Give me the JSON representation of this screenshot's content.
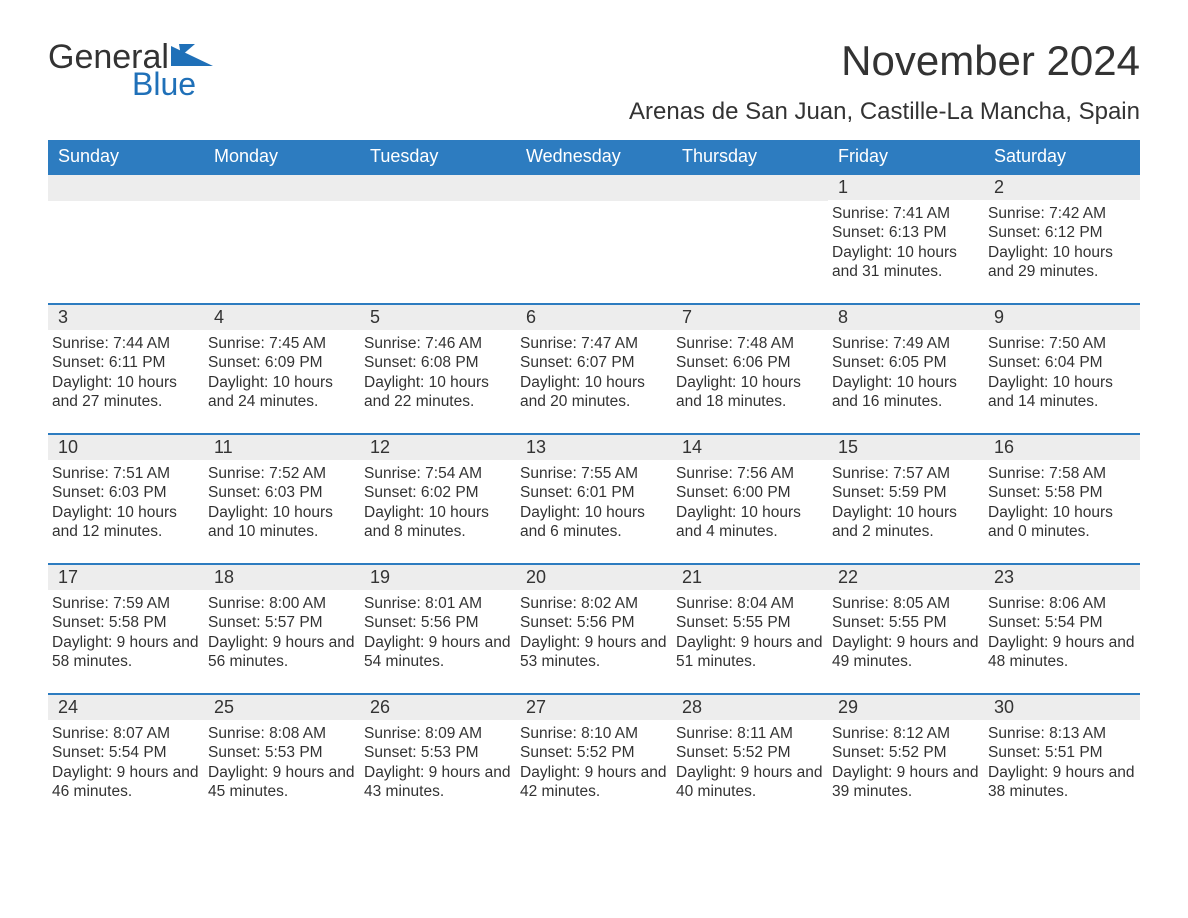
{
  "brand": {
    "word1": "General",
    "word2": "Blue",
    "flag_color": "#1f70b8"
  },
  "header": {
    "title": "November 2024",
    "location": "Arenas de San Juan, Castille-La Mancha, Spain"
  },
  "colors": {
    "header_bg": "#2d7cc0",
    "header_text": "#ffffff",
    "row_divider": "#2d7cc0",
    "daynum_bg": "#ededed",
    "text": "#333333",
    "background": "#ffffff"
  },
  "calendar": {
    "type": "calendar-table",
    "day_headers": [
      "Sunday",
      "Monday",
      "Tuesday",
      "Wednesday",
      "Thursday",
      "Friday",
      "Saturday"
    ],
    "weeks": [
      [
        null,
        null,
        null,
        null,
        null,
        {
          "n": "1",
          "sunrise": "Sunrise: 7:41 AM",
          "sunset": "Sunset: 6:13 PM",
          "daylight": "Daylight: 10 hours and 31 minutes."
        },
        {
          "n": "2",
          "sunrise": "Sunrise: 7:42 AM",
          "sunset": "Sunset: 6:12 PM",
          "daylight": "Daylight: 10 hours and 29 minutes."
        }
      ],
      [
        {
          "n": "3",
          "sunrise": "Sunrise: 7:44 AM",
          "sunset": "Sunset: 6:11 PM",
          "daylight": "Daylight: 10 hours and 27 minutes."
        },
        {
          "n": "4",
          "sunrise": "Sunrise: 7:45 AM",
          "sunset": "Sunset: 6:09 PM",
          "daylight": "Daylight: 10 hours and 24 minutes."
        },
        {
          "n": "5",
          "sunrise": "Sunrise: 7:46 AM",
          "sunset": "Sunset: 6:08 PM",
          "daylight": "Daylight: 10 hours and 22 minutes."
        },
        {
          "n": "6",
          "sunrise": "Sunrise: 7:47 AM",
          "sunset": "Sunset: 6:07 PM",
          "daylight": "Daylight: 10 hours and 20 minutes."
        },
        {
          "n": "7",
          "sunrise": "Sunrise: 7:48 AM",
          "sunset": "Sunset: 6:06 PM",
          "daylight": "Daylight: 10 hours and 18 minutes."
        },
        {
          "n": "8",
          "sunrise": "Sunrise: 7:49 AM",
          "sunset": "Sunset: 6:05 PM",
          "daylight": "Daylight: 10 hours and 16 minutes."
        },
        {
          "n": "9",
          "sunrise": "Sunrise: 7:50 AM",
          "sunset": "Sunset: 6:04 PM",
          "daylight": "Daylight: 10 hours and 14 minutes."
        }
      ],
      [
        {
          "n": "10",
          "sunrise": "Sunrise: 7:51 AM",
          "sunset": "Sunset: 6:03 PM",
          "daylight": "Daylight: 10 hours and 12 minutes."
        },
        {
          "n": "11",
          "sunrise": "Sunrise: 7:52 AM",
          "sunset": "Sunset: 6:03 PM",
          "daylight": "Daylight: 10 hours and 10 minutes."
        },
        {
          "n": "12",
          "sunrise": "Sunrise: 7:54 AM",
          "sunset": "Sunset: 6:02 PM",
          "daylight": "Daylight: 10 hours and 8 minutes."
        },
        {
          "n": "13",
          "sunrise": "Sunrise: 7:55 AM",
          "sunset": "Sunset: 6:01 PM",
          "daylight": "Daylight: 10 hours and 6 minutes."
        },
        {
          "n": "14",
          "sunrise": "Sunrise: 7:56 AM",
          "sunset": "Sunset: 6:00 PM",
          "daylight": "Daylight: 10 hours and 4 minutes."
        },
        {
          "n": "15",
          "sunrise": "Sunrise: 7:57 AM",
          "sunset": "Sunset: 5:59 PM",
          "daylight": "Daylight: 10 hours and 2 minutes."
        },
        {
          "n": "16",
          "sunrise": "Sunrise: 7:58 AM",
          "sunset": "Sunset: 5:58 PM",
          "daylight": "Daylight: 10 hours and 0 minutes."
        }
      ],
      [
        {
          "n": "17",
          "sunrise": "Sunrise: 7:59 AM",
          "sunset": "Sunset: 5:58 PM",
          "daylight": "Daylight: 9 hours and 58 minutes."
        },
        {
          "n": "18",
          "sunrise": "Sunrise: 8:00 AM",
          "sunset": "Sunset: 5:57 PM",
          "daylight": "Daylight: 9 hours and 56 minutes."
        },
        {
          "n": "19",
          "sunrise": "Sunrise: 8:01 AM",
          "sunset": "Sunset: 5:56 PM",
          "daylight": "Daylight: 9 hours and 54 minutes."
        },
        {
          "n": "20",
          "sunrise": "Sunrise: 8:02 AM",
          "sunset": "Sunset: 5:56 PM",
          "daylight": "Daylight: 9 hours and 53 minutes."
        },
        {
          "n": "21",
          "sunrise": "Sunrise: 8:04 AM",
          "sunset": "Sunset: 5:55 PM",
          "daylight": "Daylight: 9 hours and 51 minutes."
        },
        {
          "n": "22",
          "sunrise": "Sunrise: 8:05 AM",
          "sunset": "Sunset: 5:55 PM",
          "daylight": "Daylight: 9 hours and 49 minutes."
        },
        {
          "n": "23",
          "sunrise": "Sunrise: 8:06 AM",
          "sunset": "Sunset: 5:54 PM",
          "daylight": "Daylight: 9 hours and 48 minutes."
        }
      ],
      [
        {
          "n": "24",
          "sunrise": "Sunrise: 8:07 AM",
          "sunset": "Sunset: 5:54 PM",
          "daylight": "Daylight: 9 hours and 46 minutes."
        },
        {
          "n": "25",
          "sunrise": "Sunrise: 8:08 AM",
          "sunset": "Sunset: 5:53 PM",
          "daylight": "Daylight: 9 hours and 45 minutes."
        },
        {
          "n": "26",
          "sunrise": "Sunrise: 8:09 AM",
          "sunset": "Sunset: 5:53 PM",
          "daylight": "Daylight: 9 hours and 43 minutes."
        },
        {
          "n": "27",
          "sunrise": "Sunrise: 8:10 AM",
          "sunset": "Sunset: 5:52 PM",
          "daylight": "Daylight: 9 hours and 42 minutes."
        },
        {
          "n": "28",
          "sunrise": "Sunrise: 8:11 AM",
          "sunset": "Sunset: 5:52 PM",
          "daylight": "Daylight: 9 hours and 40 minutes."
        },
        {
          "n": "29",
          "sunrise": "Sunrise: 8:12 AM",
          "sunset": "Sunset: 5:52 PM",
          "daylight": "Daylight: 9 hours and 39 minutes."
        },
        {
          "n": "30",
          "sunrise": "Sunrise: 8:13 AM",
          "sunset": "Sunset: 5:51 PM",
          "daylight": "Daylight: 9 hours and 38 minutes."
        }
      ]
    ]
  }
}
